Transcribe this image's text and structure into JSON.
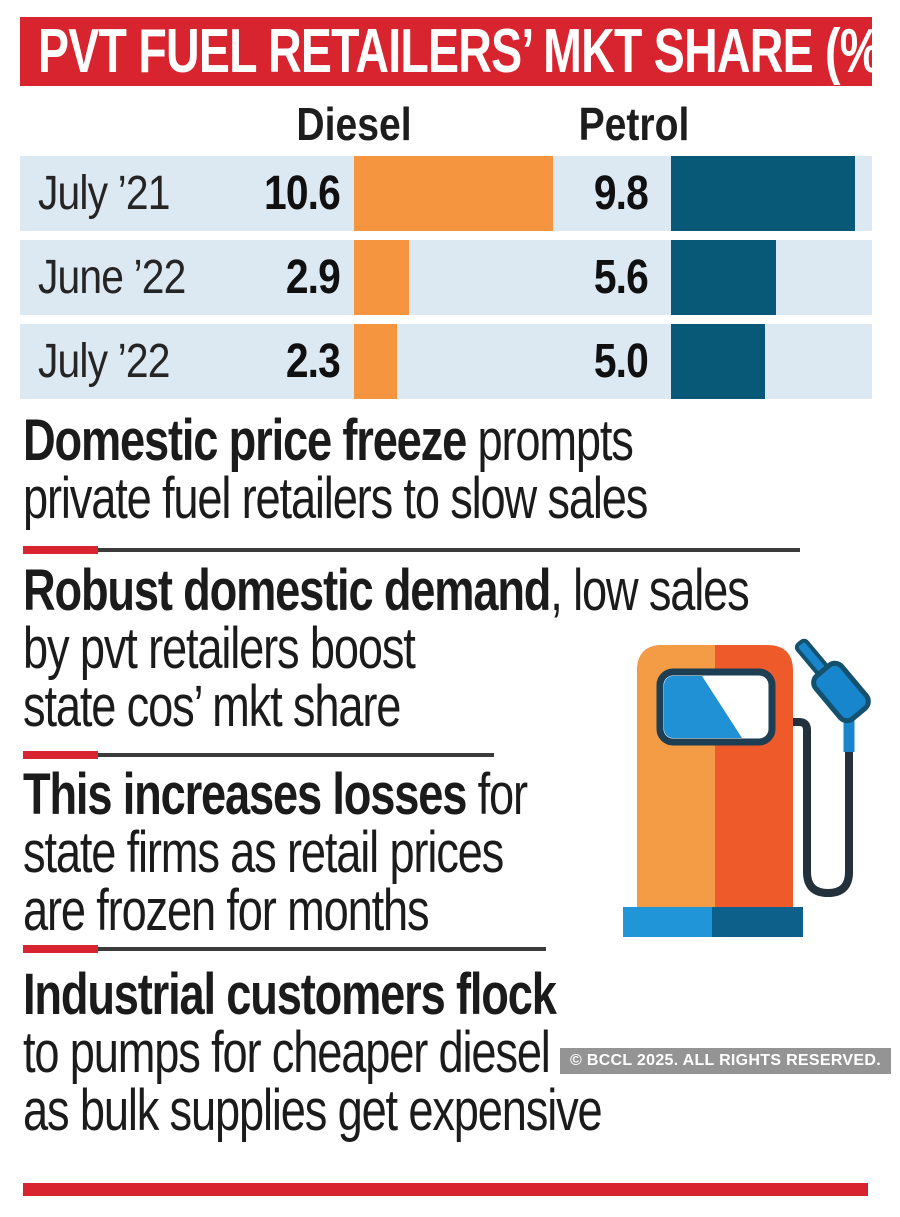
{
  "title": "PVT FUEL RETAILERS’ MKT SHARE (%)",
  "chart_data": {
    "type": "bar",
    "orientation": "horizontal",
    "title": "PVT FUEL RETAILERS’ MKT SHARE (%)",
    "categories": [
      "July ’21",
      "June ’22",
      "July ’22"
    ],
    "series": [
      {
        "name": "Diesel",
        "values": [
          10.6,
          2.9,
          2.3
        ],
        "color": "#f5953f"
      },
      {
        "name": "Petrol",
        "values": [
          9.8,
          5.6,
          5.0
        ],
        "color": "#075977"
      }
    ],
    "value_labels": true,
    "xlim": [
      0,
      11.3
    ],
    "grid": false,
    "legend_position": "top",
    "row_background": "#dde9f2"
  },
  "sections": [
    {
      "lines": [
        [
          {
            "b": "Domestic price freeze"
          },
          {
            "t": " prompts"
          }
        ],
        [
          {
            "t": "private fuel retailers to slow sales"
          }
        ]
      ]
    },
    {
      "lines": [
        [
          {
            "b": "Robust domestic demand"
          },
          {
            "t": ", low sales"
          }
        ],
        [
          {
            "t": "by pvt retailers boost"
          }
        ],
        [
          {
            "t": "state cos’ mkt share"
          }
        ]
      ]
    },
    {
      "lines": [
        [
          {
            "b": "This increases losses"
          },
          {
            "t": " for"
          }
        ],
        [
          {
            "t": "state firms as retail prices"
          }
        ],
        [
          {
            "t": "are frozen for months"
          }
        ]
      ]
    },
    {
      "lines": [
        [
          {
            "b": "Industrial customers flock"
          }
        ],
        [
          {
            "t": "to pumps for cheaper diesel"
          }
        ],
        [
          {
            "t": "as bulk supplies get expensive"
          }
        ]
      ]
    }
  ],
  "watermark": "© BCCL 2025. ALL RIGHTS RESERVED.",
  "icons": {
    "fuel_pump": "fuel-pump-illustration"
  },
  "colors": {
    "banner_red": "#d8242f",
    "diesel_orange": "#f5953f",
    "petrol_teal": "#075977",
    "row_bg": "#dde9f2",
    "divider_dark": "#3b3b3b",
    "text": "#1b1b1b",
    "pump_light_orange": "#f49b45",
    "pump_dark_orange": "#ef5a2b",
    "pump_blue": "#2191d6",
    "pump_base_dark": "#0d6089",
    "hose_dark": "#22313c"
  }
}
